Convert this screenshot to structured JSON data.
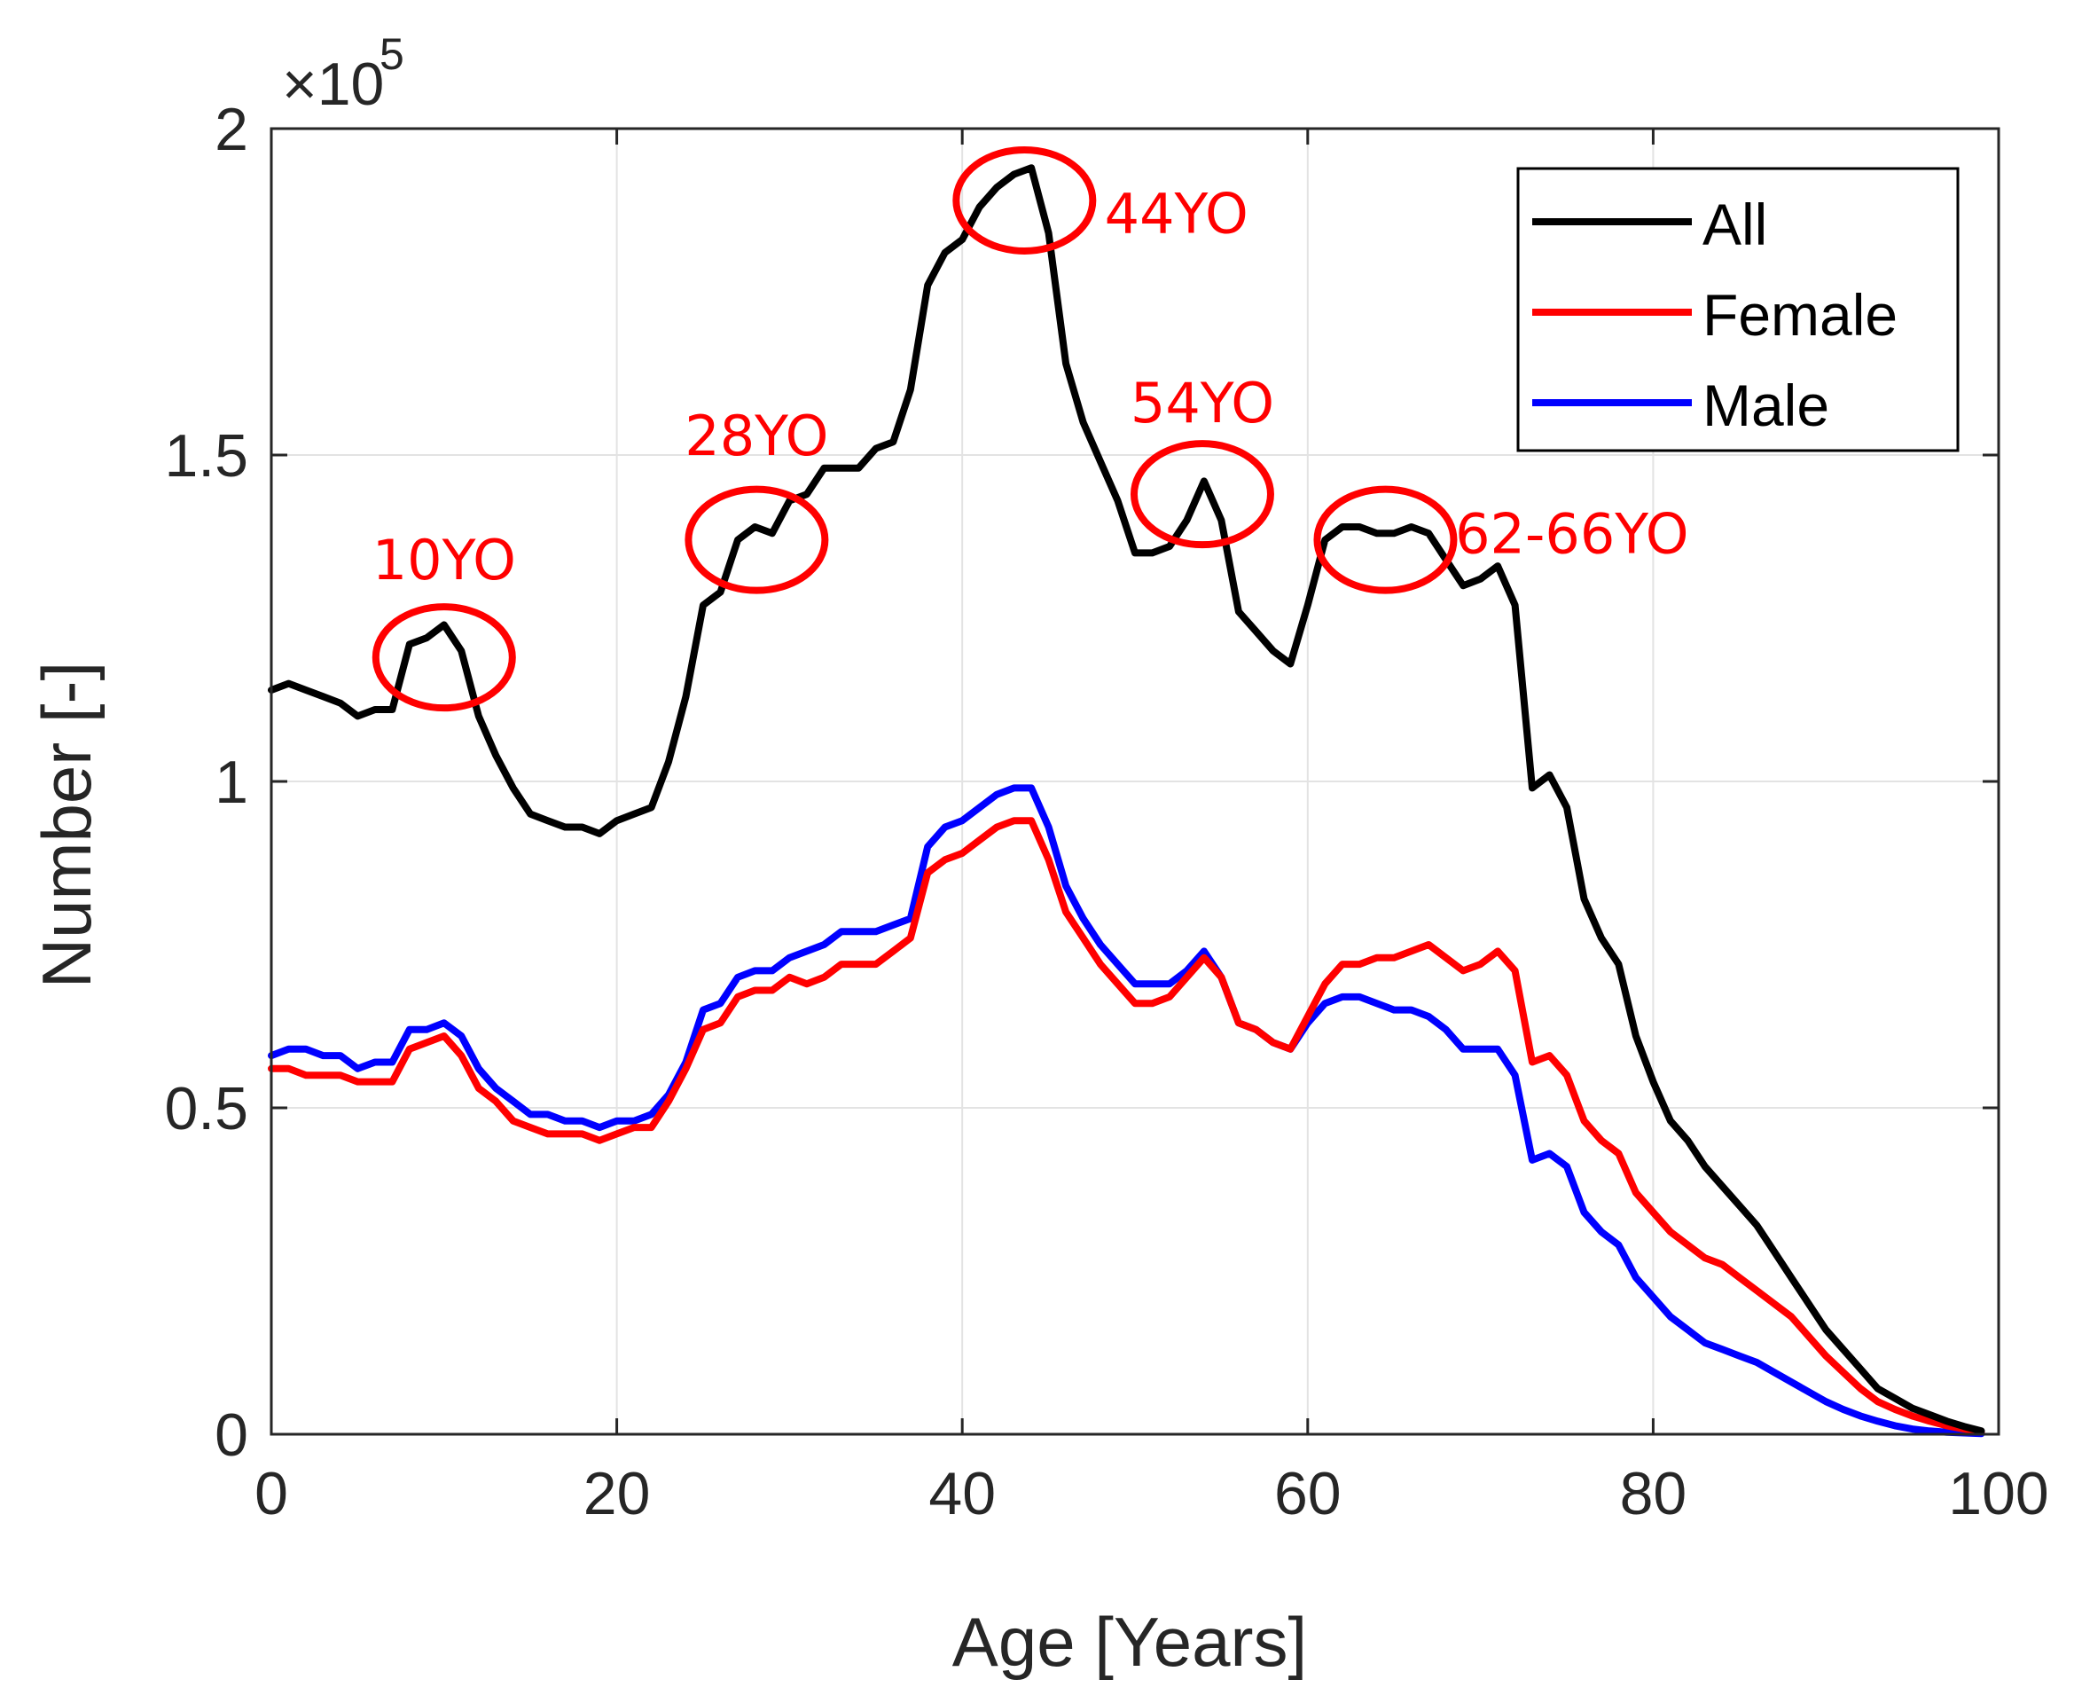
{
  "chart_data": {
    "type": "line",
    "title": "",
    "xlabel": "Age [Years]",
    "ylabel": "Number [-]",
    "y_exponent_label": {
      "base": "×10",
      "power": "5"
    },
    "xlim": [
      0,
      100
    ],
    "ylim": [
      0,
      2
    ],
    "x_ticks": [
      0,
      20,
      40,
      60,
      80,
      100
    ],
    "y_ticks": [
      0,
      0.5,
      1,
      1.5,
      2
    ],
    "x_tick_labels": [
      "0",
      "20",
      "40",
      "60",
      "80",
      "100"
    ],
    "y_tick_labels": [
      "0",
      "0.5",
      "1",
      "1.5",
      "2"
    ],
    "grid": true,
    "legend_position": "top-right",
    "x": [
      0,
      1,
      2,
      3,
      4,
      5,
      6,
      7,
      8,
      9,
      10,
      11,
      12,
      13,
      14,
      15,
      16,
      17,
      18,
      19,
      20,
      21,
      22,
      23,
      24,
      25,
      26,
      27,
      28,
      29,
      30,
      31,
      32,
      33,
      34,
      35,
      36,
      37,
      38,
      39,
      40,
      41,
      42,
      43,
      44,
      45,
      46,
      47,
      48,
      49,
      50,
      51,
      52,
      53,
      54,
      55,
      56,
      57,
      58,
      59,
      60,
      61,
      62,
      63,
      64,
      65,
      66,
      67,
      68,
      69,
      70,
      71,
      72,
      73,
      74,
      75,
      76,
      77,
      78,
      79,
      80,
      81,
      82,
      83,
      84,
      85,
      86,
      87,
      88,
      89,
      90,
      91,
      92,
      93,
      94,
      95,
      96,
      97,
      98,
      99
    ],
    "series": [
      {
        "name": "All",
        "color": "#000000",
        "values": [
          1.14,
          1.15,
          1.14,
          1.13,
          1.12,
          1.1,
          1.11,
          1.11,
          1.21,
          1.22,
          1.24,
          1.2,
          1.1,
          1.04,
          0.99,
          0.95,
          0.94,
          0.93,
          0.93,
          0.92,
          0.94,
          0.95,
          0.96,
          1.03,
          1.13,
          1.27,
          1.29,
          1.37,
          1.39,
          1.38,
          1.43,
          1.44,
          1.48,
          1.48,
          1.48,
          1.51,
          1.52,
          1.6,
          1.76,
          1.81,
          1.83,
          1.88,
          1.91,
          1.93,
          1.94,
          1.84,
          1.64,
          1.55,
          1.49,
          1.43,
          1.35,
          1.35,
          1.36,
          1.4,
          1.46,
          1.4,
          1.26,
          1.23,
          1.2,
          1.18,
          1.27,
          1.37,
          1.39,
          1.39,
          1.38,
          1.38,
          1.39,
          1.38,
          1.34,
          1.3,
          1.31,
          1.33,
          1.27,
          0.99,
          1.01,
          0.96,
          0.82,
          0.76,
          0.72,
          0.61,
          0.54,
          0.48,
          0.45,
          0.41,
          0.38,
          0.35,
          0.32,
          0.28,
          0.24,
          0.2,
          0.16,
          0.13,
          0.1,
          0.07,
          0.055,
          0.04,
          0.03,
          0.02,
          0.012,
          0.005
        ]
      },
      {
        "name": "Female",
        "color": "#ff0000",
        "values": [
          0.56,
          0.56,
          0.55,
          0.55,
          0.55,
          0.54,
          0.54,
          0.54,
          0.59,
          0.6,
          0.61,
          0.58,
          0.53,
          0.51,
          0.48,
          0.47,
          0.46,
          0.46,
          0.46,
          0.45,
          0.46,
          0.47,
          0.47,
          0.51,
          0.56,
          0.62,
          0.63,
          0.67,
          0.68,
          0.68,
          0.7,
          0.69,
          0.7,
          0.72,
          0.72,
          0.72,
          0.74,
          0.76,
          0.86,
          0.88,
          0.89,
          0.91,
          0.93,
          0.94,
          0.94,
          0.88,
          0.8,
          0.76,
          0.72,
          0.69,
          0.66,
          0.66,
          0.67,
          0.7,
          0.73,
          0.7,
          0.63,
          0.62,
          0.6,
          0.59,
          0.64,
          0.69,
          0.72,
          0.72,
          0.73,
          0.73,
          0.74,
          0.75,
          0.73,
          0.71,
          0.72,
          0.74,
          0.71,
          0.57,
          0.58,
          0.55,
          0.48,
          0.45,
          0.43,
          0.37,
          0.34,
          0.31,
          0.29,
          0.27,
          0.26,
          0.24,
          0.22,
          0.2,
          0.18,
          0.15,
          0.12,
          0.095,
          0.07,
          0.05,
          0.038,
          0.028,
          0.02,
          0.013,
          0.008,
          0.004
        ]
      },
      {
        "name": "Male",
        "color": "#0000ff",
        "values": [
          0.58,
          0.59,
          0.59,
          0.58,
          0.58,
          0.56,
          0.57,
          0.57,
          0.62,
          0.62,
          0.63,
          0.61,
          0.56,
          0.53,
          0.51,
          0.49,
          0.49,
          0.48,
          0.48,
          0.47,
          0.48,
          0.48,
          0.49,
          0.52,
          0.57,
          0.65,
          0.66,
          0.7,
          0.71,
          0.71,
          0.73,
          0.74,
          0.75,
          0.77,
          0.77,
          0.77,
          0.78,
          0.79,
          0.9,
          0.93,
          0.94,
          0.96,
          0.98,
          0.99,
          0.99,
          0.93,
          0.84,
          0.79,
          0.75,
          0.72,
          0.69,
          0.69,
          0.69,
          0.71,
          0.74,
          0.7,
          0.63,
          0.62,
          0.6,
          0.59,
          0.63,
          0.66,
          0.67,
          0.67,
          0.66,
          0.65,
          0.65,
          0.64,
          0.62,
          0.59,
          0.59,
          0.59,
          0.55,
          0.42,
          0.43,
          0.41,
          0.34,
          0.31,
          0.29,
          0.24,
          0.21,
          0.18,
          0.16,
          0.14,
          0.13,
          0.12,
          0.11,
          0.095,
          0.08,
          0.065,
          0.05,
          0.038,
          0.028,
          0.02,
          0.013,
          0.008,
          0.005,
          0.003,
          0.002,
          0.001
        ]
      }
    ],
    "annotations": [
      {
        "text": "10YO",
        "x": 10,
        "y": 1.19,
        "label_x": 10,
        "label_y": 1.34,
        "color": "#ff0000"
      },
      {
        "text": "28YO",
        "x": 28.1,
        "y": 1.37,
        "label_x": 28.1,
        "label_y": 1.53,
        "color": "#ff0000"
      },
      {
        "text": "44YO",
        "x": 43.6,
        "y": 1.89,
        "label_x": 52.4,
        "label_y": 1.87,
        "color": "#ff0000"
      },
      {
        "text": "54YO",
        "x": 53.9,
        "y": 1.44,
        "label_x": 53.9,
        "label_y": 1.58,
        "color": "#ff0000"
      },
      {
        "text": "62-66YO",
        "x": 64.5,
        "y": 1.37,
        "label_x": 75.3,
        "label_y": 1.38,
        "color": "#ff0000"
      }
    ]
  }
}
